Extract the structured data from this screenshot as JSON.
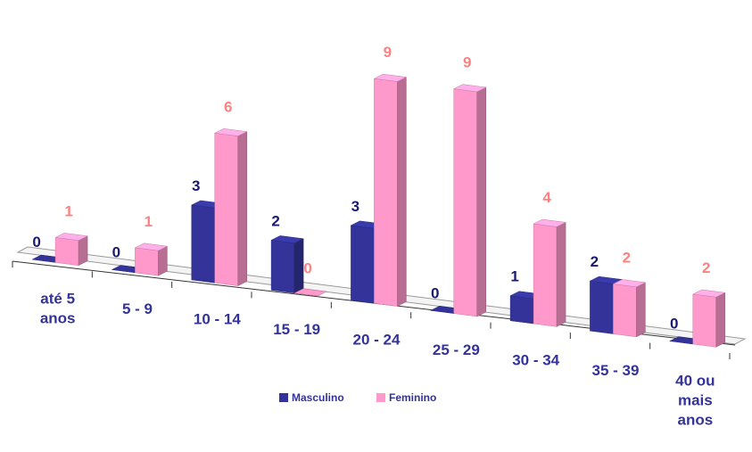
{
  "chart_data": {
    "type": "bar",
    "categories": [
      [
        "até 5",
        "anos"
      ],
      [
        "5 - 9"
      ],
      [
        "10 - 14"
      ],
      [
        "15 - 19"
      ],
      [
        "20 - 24"
      ],
      [
        "25 - 29"
      ],
      [
        "30 - 34"
      ],
      [
        "35 - 39"
      ],
      [
        "40 ou",
        "mais",
        "anos"
      ]
    ],
    "series": [
      {
        "name": "Masculino",
        "values": [
          0,
          0,
          3,
          2,
          3,
          0,
          1,
          2,
          0
        ],
        "color": "#333399",
        "label_color": "#1a1a6e"
      },
      {
        "name": "Feminino",
        "values": [
          1,
          1,
          6,
          0,
          9,
          9,
          4,
          2,
          2
        ],
        "color": "#ff99cc",
        "label_color": "#ff8080"
      }
    ],
    "ylim": [
      0,
      9
    ],
    "legend_position": "bottom",
    "style": "3d-perspective"
  }
}
